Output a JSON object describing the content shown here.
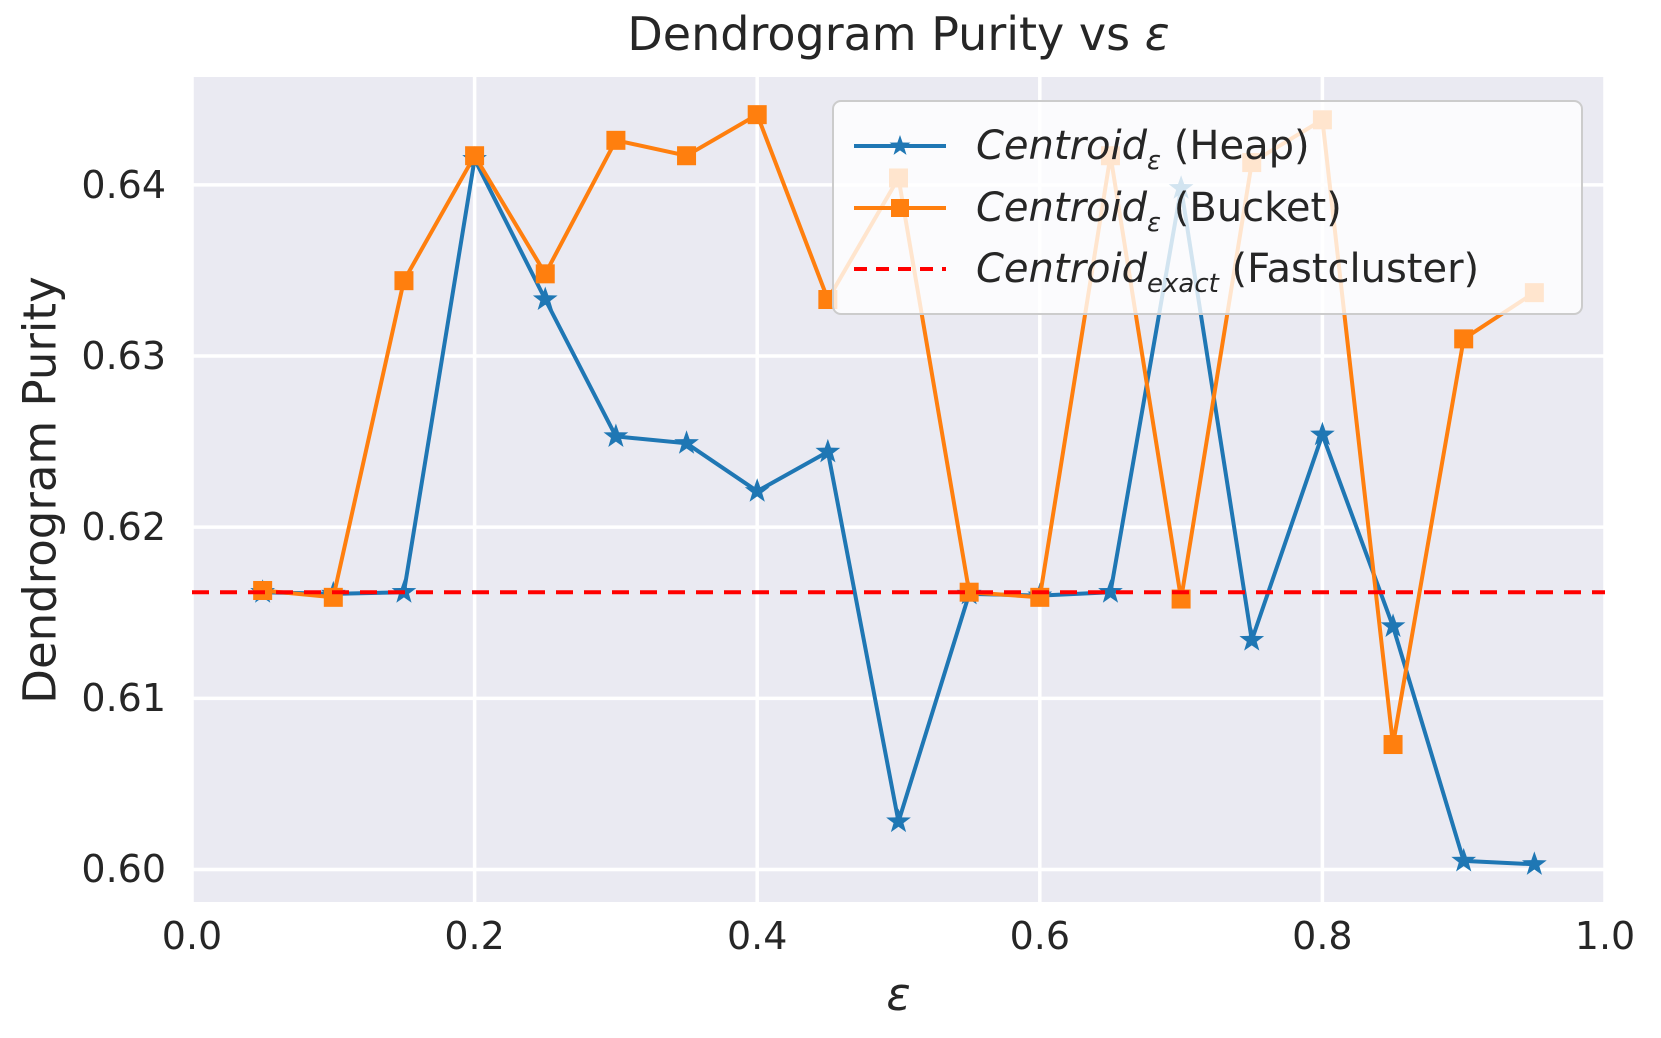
{
  "title": {
    "main": "Dendrogram Purity vs ",
    "eps": "ε"
  },
  "axes": {
    "xlabel": "ε",
    "ylabel": "Dendrogram Purity"
  },
  "legend": {
    "entries": [
      {
        "word": "Centroid",
        "sub": "ε",
        "rest": " (Heap)",
        "swatch": "blue-star-line"
      },
      {
        "word": "Centroid",
        "sub": "ε",
        "rest": " (Bucket)",
        "swatch": "orange-square-line"
      },
      {
        "word": "Centroid",
        "sub": "exact",
        "rest": " (Fastcluster)",
        "swatch": "red-dashed-line"
      }
    ]
  },
  "chart_data": {
    "type": "line",
    "title": "Dendrogram Purity vs ε",
    "xlabel": "ε",
    "ylabel": "Dendrogram Purity",
    "xlim": [
      0.0,
      1.0
    ],
    "ylim": [
      0.5981,
      0.6463
    ],
    "xticks": [
      0.0,
      0.2,
      0.4,
      0.6,
      0.8,
      1.0
    ],
    "xtick_labels": [
      "0.0",
      "0.2",
      "0.4",
      "0.6",
      "0.8",
      "1.0"
    ],
    "yticks": [
      0.6,
      0.61,
      0.62,
      0.63,
      0.64
    ],
    "ytick_labels": [
      "0.60",
      "0.61",
      "0.62",
      "0.63",
      "0.64"
    ],
    "grid": true,
    "legend_position": "upper right",
    "background_color": "#eaeaf2",
    "grid_color": "#ffffff",
    "x": [
      0.05,
      0.1,
      0.15,
      0.2,
      0.25,
      0.3,
      0.35,
      0.4,
      0.45,
      0.5,
      0.55,
      0.6,
      0.65,
      0.7,
      0.75,
      0.8,
      0.85,
      0.9,
      0.95
    ],
    "series": [
      {
        "name": "Centroid_ε (Heap)",
        "type": "line",
        "color": "#1f77b4",
        "marker": "star",
        "values": [
          0.6162,
          0.6161,
          0.6162,
          0.6415,
          0.6333,
          0.6253,
          0.6249,
          0.6221,
          0.6244,
          0.6028,
          0.6161,
          0.616,
          0.6162,
          0.6398,
          0.6134,
          0.6254,
          0.6142,
          0.6005,
          0.6003
        ]
      },
      {
        "name": "Centroid_ε (Bucket)",
        "type": "line",
        "color": "#ff7f0e",
        "marker": "square",
        "values": [
          0.6163,
          0.6159,
          0.6344,
          0.6417,
          0.6348,
          0.6426,
          0.6417,
          0.6441,
          0.6333,
          0.6404,
          0.6162,
          0.6159,
          0.6417,
          0.6158,
          0.6413,
          0.6438,
          0.6073,
          0.631,
          0.6337
        ]
      },
      {
        "name": "Centroid_exact (Fastcluster)",
        "type": "hline",
        "color": "#ff0000",
        "style": "dashed",
        "value": 0.6162
      }
    ]
  }
}
